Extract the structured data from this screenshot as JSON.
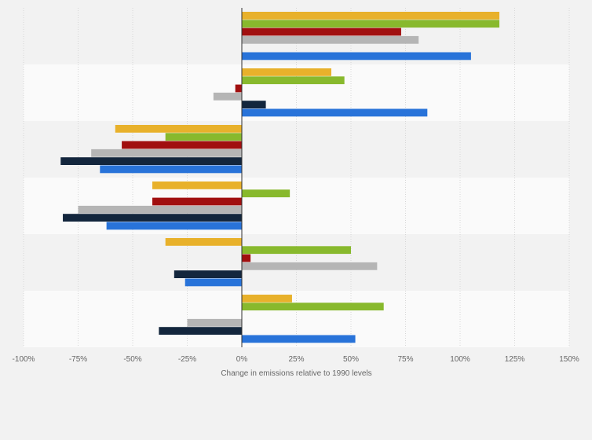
{
  "chart_data": {
    "type": "bar",
    "orientation": "horizontal",
    "xlabel": "Change in emissions relative to 1990 levels",
    "xlim": [
      -100,
      150
    ],
    "x_ticks": [
      -100,
      -75,
      -50,
      -25,
      0,
      25,
      50,
      75,
      100,
      125,
      150
    ],
    "tick_labels": [
      "-100%",
      "-75%",
      "-50%",
      "-25%",
      "0%",
      "25%",
      "50%",
      "75%",
      "100%",
      "125%",
      "150%"
    ],
    "grid": true,
    "legend": "none",
    "series_colors": [
      "#e8b12b",
      "#88b92d",
      "#a10f0f",
      "#b5b5b5",
      "#13263d",
      "#2873d9"
    ],
    "groups": [
      {
        "values": [
          118,
          118,
          73,
          81,
          0,
          105
        ]
      },
      {
        "values": [
          41,
          47,
          -3,
          -13,
          11,
          85
        ]
      },
      {
        "values": [
          -58,
          -35,
          -55,
          -69,
          -83,
          -65
        ]
      },
      {
        "values": [
          -41,
          22,
          -41,
          -75,
          -82,
          -62
        ]
      },
      {
        "values": [
          -35,
          50,
          4,
          62,
          -31,
          -26
        ]
      },
      {
        "values": [
          23,
          65,
          null,
          -25,
          -38,
          52
        ]
      }
    ]
  }
}
